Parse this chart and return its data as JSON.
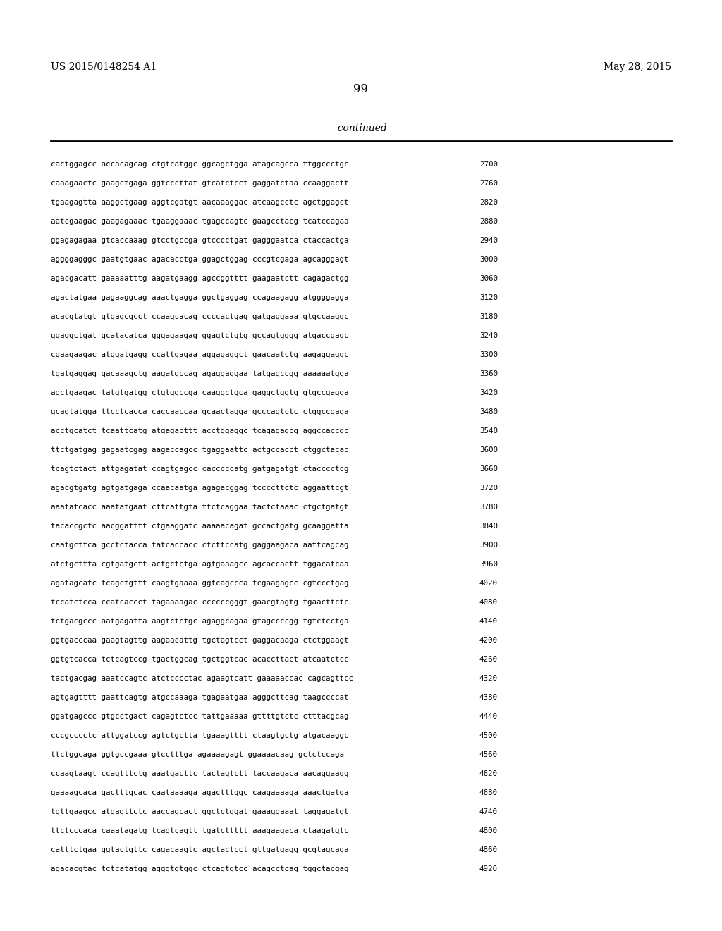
{
  "patent_left": "US 2015/0148254 A1",
  "patent_right": "May 28, 2015",
  "page_number": "99",
  "continued_label": "-continued",
  "background_color": "#ffffff",
  "text_color": "#000000",
  "sequences": [
    [
      "cactggagcc accacagcag ctgtcatggc ggcagctgga atagcagcca ttggccctgc",
      "2700"
    ],
    [
      "caaagaactc gaagctgaga ggtcccttat gtcatctcct gaggatctaa ccaaggactt",
      "2760"
    ],
    [
      "tgaagagtta aaggctgaag aggtcgatgt aacaaaggac atcaagcctc agctggagct",
      "2820"
    ],
    [
      "aatcgaagac gaagagaaac tgaaggaaac tgagccagtc gaagcctacg tcatccagaa",
      "2880"
    ],
    [
      "ggagagagaa gtcaccaaag gtcctgccga gtcccctgat gagggaatca ctaccactga",
      "2940"
    ],
    [
      "aggggagggc gaatgtgaac agacacctga ggagctggag cccgtcgaga agcagggagt",
      "3000"
    ],
    [
      "agacgacatt gaaaaatttg aagatgaagg agccggtttt gaagaatctt cagagactgg",
      "3060"
    ],
    [
      "agactatgaa gagaaggcag aaactgagga ggctgaggag ccagaagagg atggggagga",
      "3120"
    ],
    [
      "acacgtatgt gtgagcgcct ccaagcacag ccccactgag gatgaggaaa gtgccaaggc",
      "3180"
    ],
    [
      "ggaggctgat gcatacatca gggagaagag ggagtctgtg gccagtgggg atgaccgagc",
      "3240"
    ],
    [
      "cgaagaagac atggatgagg ccattgagaa aggagaggct gaacaatctg aagaggaggc",
      "3300"
    ],
    [
      "tgatgaggag gacaaagctg aagatgccag agaggaggaa tatgagccgg aaaaaatgga",
      "3360"
    ],
    [
      "agctgaagac tatgtgatgg ctgtggccga caaggctgca gaggctggtg gtgccgagga",
      "3420"
    ],
    [
      "gcagtatgga ttcctcacca caccaaccaa gcaactagga gcccagtctc ctggccgaga",
      "3480"
    ],
    [
      "acctgcatct tcaattcatg atgagacttt acctggaggc tcagagagcg aggccaccgc",
      "3540"
    ],
    [
      "ttctgatgag gagaatcgag aagaccagcc tgaggaattc actgccacct ctggctacac",
      "3600"
    ],
    [
      "tcagtctact attgagatat ccagtgagcc cacccccatg gatgagatgt ctacccctcg",
      "3660"
    ],
    [
      "agacgtgatg agtgatgaga ccaacaatga agagacggag tccccttctc aggaattcgt",
      "3720"
    ],
    [
      "aaatatcacc aaatatgaat cttcattgta ttctcaggaa tactctaaac ctgctgatgt",
      "3780"
    ],
    [
      "tacaccgctc aacggatttt ctgaaggatc aaaaacagat gccactgatg gcaaggatta",
      "3840"
    ],
    [
      "caatgcttca gcctctacca tatcaccacc ctcttccatg gaggaagaca aattcagcag",
      "3900"
    ],
    [
      "atctgcttta cgtgatgctt actgctctga agtgaaagcc agcaccactt tggacatcaa",
      "3960"
    ],
    [
      "agatagcatc tcagctgttt caagtgaaaa ggtcagccca tcgaagagcc cgtccctgag",
      "4020"
    ],
    [
      "tccatctcca ccatcaccct tagaaaagac ccccccgggt gaacgtagtg tgaacttctc",
      "4080"
    ],
    [
      "tctgacgccc aatgagatta aagtctctgc agaggcagaa gtagccccgg tgtctcctga",
      "4140"
    ],
    [
      "ggtgacccaa gaagtagttg aagaacattg tgctagtcct gaggacaaga ctctggaagt",
      "4200"
    ],
    [
      "ggtgtcacca tctcagtccg tgactggcag tgctggtcac acaccttact atcaatctcc",
      "4260"
    ],
    [
      "tactgacgag aaatccagtc atctcccctac agaagtcatt gaaaaaccac cagcagttcc",
      "4320"
    ],
    [
      "agtgagtttt gaattcagtg atgccaaaga tgagaatgaa agggcttcag taagccccat",
      "4380"
    ],
    [
      "ggatgagccc gtgcctgact cagagtctcc tattgaaaaa gttttgtctc ctttacgcag",
      "4440"
    ],
    [
      "cccgcccctc attggatccg agtctgctta tgaaagtttt ctaagtgctg atgacaaggc",
      "4500"
    ],
    [
      "ttctggcaga ggtgccgaaa gtcctttga agaaaagagt ggaaaacaag gctctccaga",
      "4560"
    ],
    [
      "ccaagtaagt ccagtttctg aaatgacttc tactagtctt taccaagaca aacaggaagg",
      "4620"
    ],
    [
      "gaaaagcaca gactttgcac caataaaaga agactttggc caagaaaaga aaactgatga",
      "4680"
    ],
    [
      "tgttgaagcc atgagttctc aaccagcact ggctctggat gaaaggaaat taggagatgt",
      "4740"
    ],
    [
      "ttctcccaca caaatagatg tcagtcagtt tgatcttttt aaagaagaca ctaagatgtc",
      "4800"
    ],
    [
      "catttctgaa ggtactgttc cagacaagtc agctactcct gttgatgagg gcgtagcaga",
      "4860"
    ],
    [
      "agacacgtac tctcatatgg agggtgtggc ctcagtgtcc acagcctcag tggctacgag",
      "4920"
    ]
  ]
}
